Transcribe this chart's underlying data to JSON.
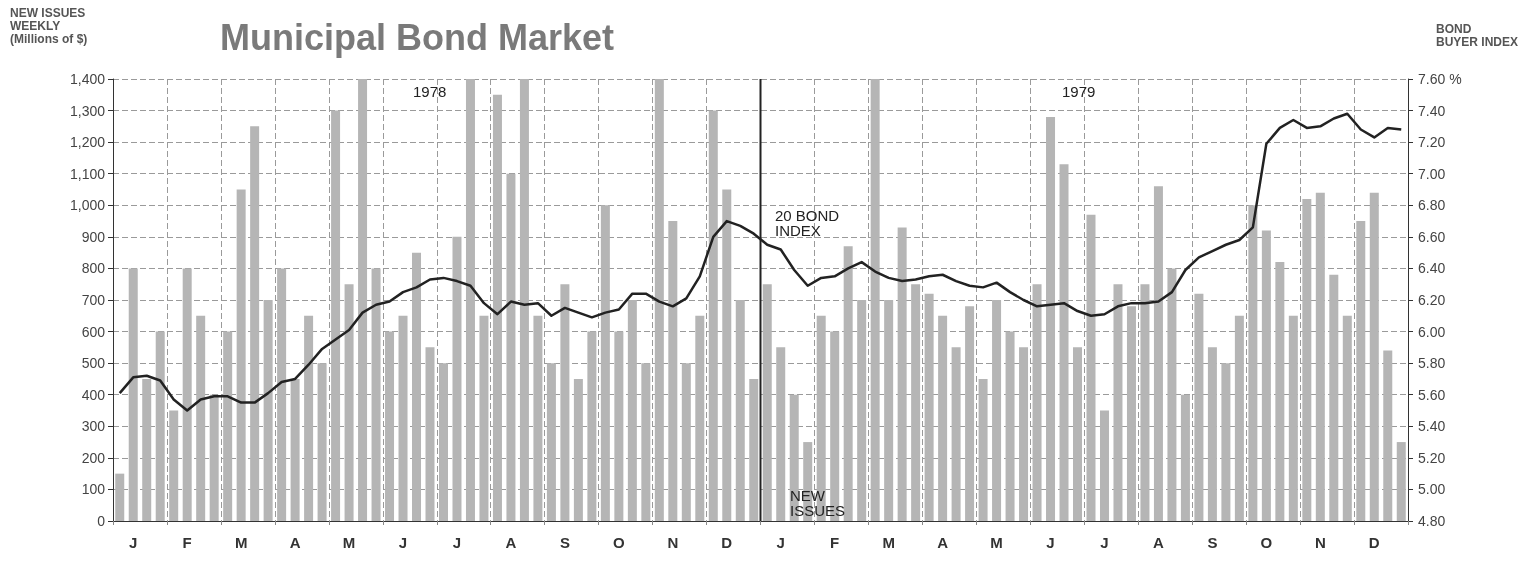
{
  "chart_data": {
    "type": "bar",
    "title": "Municipal Bond Market",
    "ylabel": "NEW ISSUES\nWEEKLY\n(Millions of $)",
    "y2label": "BOND\nBUYER INDEX",
    "categories": [
      null,
      "J",
      null,
      null,
      null,
      "F",
      null,
      null,
      null,
      "M",
      null,
      null,
      null,
      "A",
      null,
      null,
      null,
      "M",
      null,
      null,
      null,
      "J",
      null,
      null,
      null,
      "J",
      null,
      null,
      null,
      "A",
      null,
      null,
      null,
      "S",
      null,
      null,
      null,
      "O",
      null,
      null,
      null,
      "N",
      null,
      null,
      null,
      "D",
      null,
      null,
      null,
      "J",
      null,
      null,
      null,
      "F",
      null,
      null,
      null,
      "M",
      null,
      null,
      null,
      "A",
      null,
      null,
      null,
      "M",
      null,
      null,
      null,
      "J",
      null,
      null,
      null,
      "J",
      null,
      null,
      null,
      "A",
      null,
      null,
      null,
      "S",
      null,
      null,
      null,
      "O",
      null,
      null,
      null,
      "N",
      null,
      null,
      null,
      "D",
      null,
      null
    ],
    "ylim": [
      0,
      1400
    ],
    "yticks": [
      0,
      100,
      200,
      300,
      400,
      500,
      600,
      700,
      800,
      900,
      {
        "value": 1000,
        "label": "1,000"
      },
      {
        "value": 1100,
        "label": "1,100"
      },
      {
        "value": 1200,
        "label": "1,200"
      },
      {
        "value": 1300,
        "label": "1,300"
      },
      {
        "value": 1400,
        "label": "1,400"
      }
    ],
    "y2lim": [
      4.8,
      7.6
    ],
    "y2ticks": [
      {
        "value": 4.8,
        "label": "4.80"
      },
      {
        "value": 5.0,
        "label": "5.00"
      },
      {
        "value": 5.2,
        "label": "5.20"
      },
      {
        "value": 5.4,
        "label": "5.40"
      },
      {
        "value": 5.6,
        "label": "5.60"
      },
      {
        "value": 5.8,
        "label": "5.80"
      },
      {
        "value": 6.0,
        "label": "6.00"
      },
      {
        "value": 6.2,
        "label": "6.20"
      },
      {
        "value": 6.4,
        "label": "6.40"
      },
      {
        "value": 6.6,
        "label": "6.60"
      },
      {
        "value": 6.8,
        "label": "6.80"
      },
      {
        "value": 7.0,
        "label": "7.00"
      },
      {
        "value": 7.2,
        "label": "7.20"
      },
      {
        "value": 7.4,
        "label": "7.40"
      },
      {
        "value": 7.6,
        "label": "7.60 %"
      }
    ],
    "grid": true,
    "annotations": [
      "1978",
      "1979",
      "20 BOND\nINDEX",
      "NEW\nISSUES"
    ],
    "series": [
      {
        "color": "#b5b5b5",
        "values": [
          150,
          800,
          450,
          600,
          350,
          800,
          650,
          400,
          600,
          1050,
          1250,
          700,
          800,
          450,
          650,
          500,
          1300,
          750,
          1400,
          800,
          600,
          650,
          850,
          550,
          500,
          900,
          1400,
          650,
          1350,
          1100,
          1400,
          650,
          500,
          750,
          450,
          600,
          1000,
          600,
          700,
          500,
          1400,
          950,
          500,
          650,
          1300,
          1050,
          700,
          450,
          750,
          550,
          400,
          250,
          650,
          600,
          870,
          700,
          1400,
          700,
          930,
          750,
          720,
          650,
          550,
          680,
          450,
          700,
          600,
          550,
          750,
          1280,
          1130,
          550,
          970,
          350,
          750,
          680,
          750,
          1060,
          800,
          400,
          720,
          550,
          500,
          650,
          1000,
          920,
          820,
          650,
          1020,
          1040,
          780,
          650,
          950,
          1040,
          540,
          250
        ]
      },
      {
        "type": "line",
        "axis": "y2",
        "color": "#222222",
        "marker": "none",
        "line_style": "solid",
        "values": [
          5.61,
          5.71,
          5.72,
          5.69,
          5.57,
          5.5,
          5.57,
          5.59,
          5.59,
          5.55,
          5.55,
          5.61,
          5.68,
          5.7,
          5.79,
          5.89,
          5.95,
          6.01,
          6.12,
          6.17,
          6.19,
          6.25,
          6.28,
          6.33,
          6.34,
          6.32,
          6.29,
          6.18,
          6.11,
          6.19,
          6.17,
          6.18,
          6.1,
          6.15,
          6.12,
          6.09,
          6.12,
          6.14,
          6.24,
          6.24,
          6.19,
          6.16,
          6.21,
          6.35,
          6.6,
          6.7,
          6.67,
          6.62,
          6.55,
          6.52,
          6.39,
          6.29,
          6.34,
          6.35,
          6.4,
          6.44,
          6.38,
          6.34,
          6.32,
          6.33,
          6.35,
          6.36,
          6.32,
          6.29,
          6.28,
          6.31,
          6.25,
          6.2,
          6.16,
          6.17,
          6.18,
          6.13,
          6.1,
          6.11,
          6.16,
          6.18,
          6.18,
          6.19,
          6.25,
          6.39,
          6.47,
          6.51,
          6.55,
          6.58,
          6.66,
          7.19,
          7.29,
          7.34,
          7.29,
          7.3,
          7.35,
          7.38,
          7.28,
          7.23,
          7.29,
          7.28
        ]
      }
    ]
  }
}
